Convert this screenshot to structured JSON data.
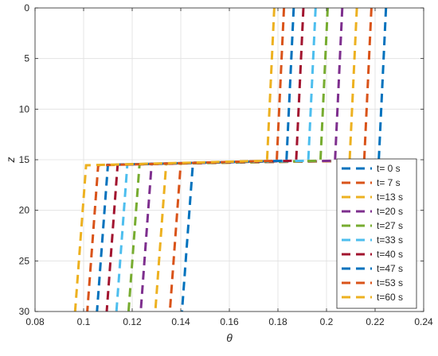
{
  "chart_data": {
    "type": "line",
    "title": "",
    "xlabel": "θ",
    "ylabel": "z",
    "xlim": [
      0.08,
      0.24
    ],
    "ylim": [
      0,
      30
    ],
    "y_reversed": true,
    "grid": true,
    "x_ticks": [
      "0.08",
      "0.1",
      "0.12",
      "0.14",
      "0.16",
      "0.18",
      "0.2",
      "0.22",
      "0.24"
    ],
    "y_ticks": [
      "0",
      "5",
      "10",
      "15",
      "20",
      "25",
      "30"
    ],
    "legend_position": "bottom-right",
    "line_style": "dashed",
    "series": [
      {
        "name": "t= 0 s",
        "color": "#0072BD",
        "points": [
          [
            0.2245,
            0
          ],
          [
            0.2215,
            15.1
          ],
          [
            0.145,
            15.3
          ],
          [
            0.1405,
            30
          ]
        ]
      },
      {
        "name": "t= 7 s",
        "color": "#D95319",
        "points": [
          [
            0.2185,
            0
          ],
          [
            0.2155,
            15.1
          ],
          [
            0.14,
            15.35
          ],
          [
            0.1355,
            30
          ]
        ]
      },
      {
        "name": "t=13 s",
        "color": "#EDB120",
        "points": [
          [
            0.2125,
            0
          ],
          [
            0.2095,
            15.1
          ],
          [
            0.134,
            15.4
          ],
          [
            0.1295,
            30
          ]
        ]
      },
      {
        "name": "t=20 s",
        "color": "#7E2F8E",
        "points": [
          [
            0.2065,
            0
          ],
          [
            0.2035,
            15.1
          ],
          [
            0.128,
            15.4
          ],
          [
            0.1235,
            30
          ]
        ]
      },
      {
        "name": "t=27 s",
        "color": "#77AC30",
        "points": [
          [
            0.2005,
            0
          ],
          [
            0.1975,
            15.1
          ],
          [
            0.123,
            15.45
          ],
          [
            0.1185,
            30
          ]
        ]
      },
      {
        "name": "t=33 s",
        "color": "#4DBEEE",
        "points": [
          [
            0.1955,
            0
          ],
          [
            0.1925,
            15.1
          ],
          [
            0.118,
            15.45
          ],
          [
            0.1135,
            30
          ]
        ]
      },
      {
        "name": "t=40 s",
        "color": "#A2142F",
        "points": [
          [
            0.1905,
            0
          ],
          [
            0.1875,
            15.1
          ],
          [
            0.114,
            15.5
          ],
          [
            0.1095,
            30
          ]
        ]
      },
      {
        "name": "t=47 s",
        "color": "#0072BD",
        "points": [
          [
            0.1865,
            0
          ],
          [
            0.1835,
            15.1
          ],
          [
            0.11,
            15.5
          ],
          [
            0.1055,
            30
          ]
        ]
      },
      {
        "name": "t=53 s",
        "color": "#D95319",
        "points": [
          [
            0.1825,
            0
          ],
          [
            0.1795,
            15.1
          ],
          [
            0.106,
            15.55
          ],
          [
            0.1015,
            30
          ]
        ]
      },
      {
        "name": "t=60 s",
        "color": "#EDB120",
        "points": [
          [
            0.1785,
            0
          ],
          [
            0.1755,
            15.1
          ],
          [
            0.101,
            15.55
          ],
          [
            0.0965,
            30
          ]
        ]
      }
    ]
  }
}
